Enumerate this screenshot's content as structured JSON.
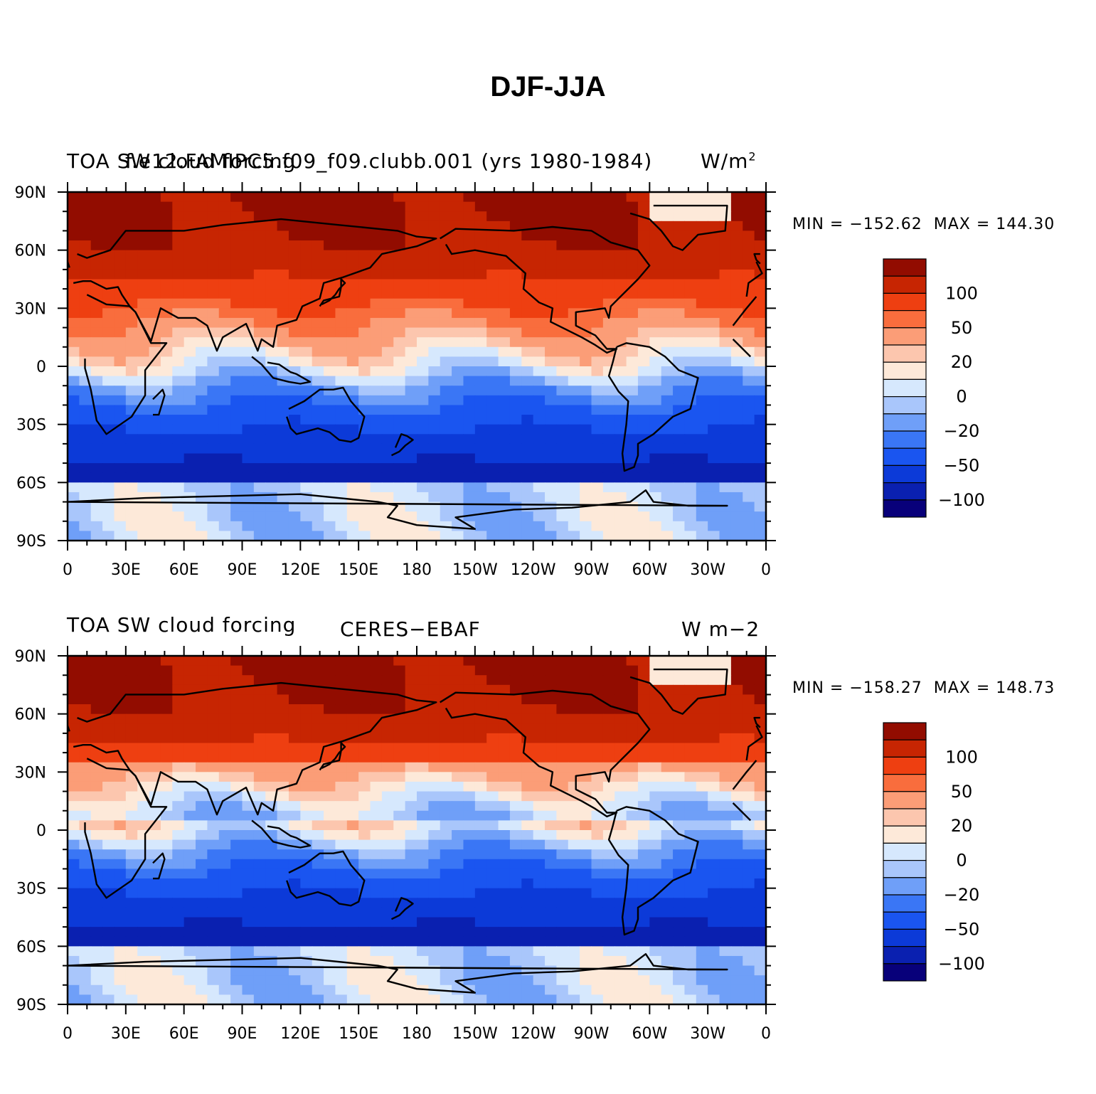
{
  "title": "DJF-JJA",
  "palette": [
    "#08007a",
    "#0a20b0",
    "#0c3ad8",
    "#1a55f0",
    "#3a76f5",
    "#6f9ff8",
    "#a9c6fb",
    "#d6e8fd",
    "#fde9d9",
    "#fcc6ae",
    "#fb9d77",
    "#f96d3d",
    "#ee3f11",
    "#c72502",
    "#920c00"
  ],
  "chart_data": [
    {
      "type": "heatmap",
      "left_label": "TOA SW cloud forcing",
      "center_label": "f.e12.FAMIPC5.f09_f09.clubb.001 (yrs 1980-1984)",
      "right_label": "W/m",
      "right_label_sup": "2",
      "min_text": "MIN = −152.62",
      "max_text": "MAX = 144.30",
      "min": -152.62,
      "max": 144.3,
      "x_ticks": [
        "0",
        "30E",
        "60E",
        "90E",
        "120E",
        "150E",
        "180",
        "150W",
        "120W",
        "90W",
        "60W",
        "30W",
        "0"
      ],
      "y_ticks": [
        "90N",
        "60N",
        "30N",
        "0",
        "30S",
        "60S",
        "90S"
      ],
      "colorbar_labels": [
        "100",
        "50",
        "20",
        "0",
        "−20",
        "−50",
        "−100"
      ]
    },
    {
      "type": "heatmap",
      "left_label": "TOA SW cloud forcing",
      "center_label": "CERES−EBAF",
      "right_label": "W m−2",
      "min_text": "MIN = −158.27",
      "max_text": "MAX = 148.73",
      "min": -158.27,
      "max": 148.73,
      "x_ticks": [
        "0",
        "30E",
        "60E",
        "90E",
        "120E",
        "150E",
        "180",
        "150W",
        "120W",
        "90W",
        "60W",
        "30W",
        "0"
      ],
      "y_ticks": [
        "90N",
        "60N",
        "30N",
        "0",
        "30S",
        "60S",
        "90S"
      ],
      "colorbar_labels": [
        "100",
        "50",
        "20",
        "0",
        "−20",
        "−50",
        "−100"
      ]
    }
  ]
}
